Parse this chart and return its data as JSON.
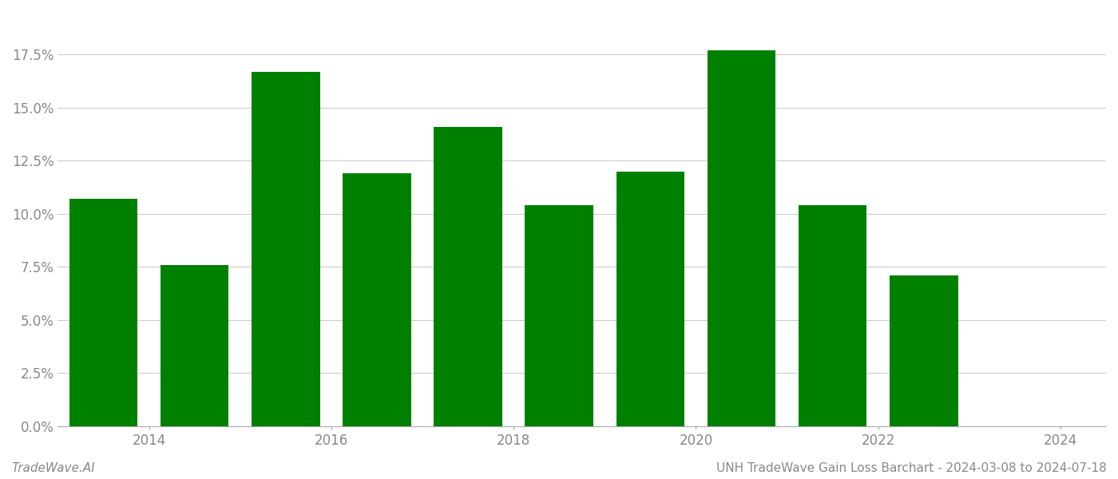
{
  "years": [
    2013.5,
    2014.5,
    2015.5,
    2016.5,
    2017.5,
    2018.5,
    2019.5,
    2020.5,
    2021.5,
    2022.5
  ],
  "values": [
    0.107,
    0.076,
    0.167,
    0.119,
    0.141,
    0.104,
    0.12,
    0.177,
    0.104,
    0.071
  ],
  "bar_color": "#008000",
  "background_color": "#ffffff",
  "grid_color": "#cccccc",
  "ylabel_color": "#888888",
  "xlabel_color": "#888888",
  "ytick_labels": [
    "0.0%",
    "2.5%",
    "5.0%",
    "7.5%",
    "10.0%",
    "12.5%",
    "15.0%",
    "17.5%"
  ],
  "ytick_values": [
    0.0,
    0.025,
    0.05,
    0.075,
    0.1,
    0.125,
    0.15,
    0.175
  ],
  "ylim": [
    0,
    0.195
  ],
  "xlim_min": 2013.0,
  "xlim_max": 2024.5,
  "xtick_years": [
    2014,
    2016,
    2018,
    2020,
    2022,
    2024
  ],
  "footer_left": "TradeWave.AI",
  "footer_right": "UNH TradeWave Gain Loss Barchart - 2024-03-08 to 2024-07-18",
  "footer_color": "#888888",
  "footer_fontsize": 11,
  "bar_width": 0.75,
  "tick_fontsize": 12
}
